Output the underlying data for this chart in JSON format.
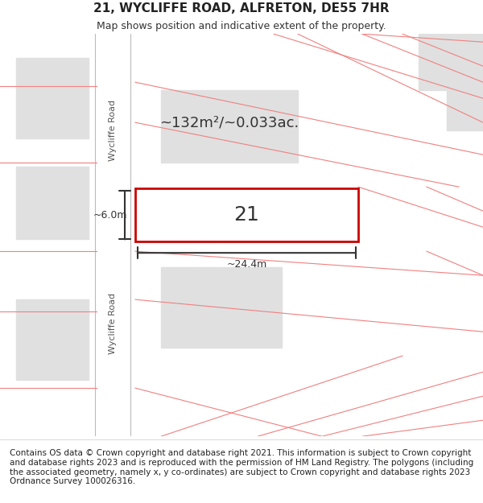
{
  "title": "21, WYCLIFFE ROAD, ALFRETON, DE55 7HR",
  "subtitle": "Map shows position and indicative extent of the property.",
  "footer": "Contains OS data © Crown copyright and database right 2021. This information is subject to Crown copyright and database rights 2023 and is reproduced with the permission of HM Land Registry. The polygons (including the associated geometry, namely x, y co-ordinates) are subject to Crown copyright and database rights 2023 Ordnance Survey 100026316.",
  "area_text": "~132m²/~0.033ac.",
  "width_text": "~24.4m",
  "height_text": "~6.0m",
  "plot_number": "21",
  "bg_color": "#ffffff",
  "map_bg": "#f5f5f5",
  "road_color": "#ffffff",
  "building_color": "#e0e0e0",
  "plot_fill": "#ffffff",
  "plot_edge_color": "#cc0000",
  "boundary_color": "#f08080",
  "road_label": "Wycliffe Road",
  "title_fontsize": 11,
  "subtitle_fontsize": 9,
  "footer_fontsize": 7.5
}
